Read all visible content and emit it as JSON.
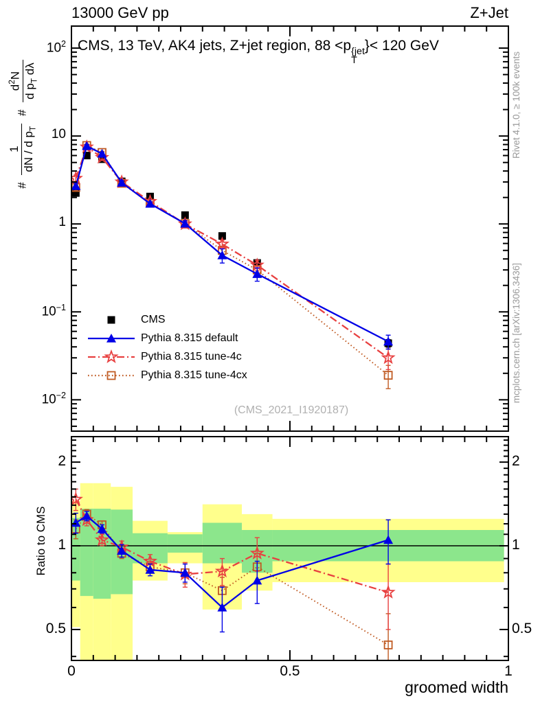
{
  "header": {
    "left": "13000 GeV pp",
    "right": "Z+Jet"
  },
  "title": {
    "pre": "CMS, 13 TeV, AK4 jets, Z+jet region, 88 <p",
    "sup": "{jet",
    "sub": "T",
    "post": "}< 120 GeV"
  },
  "ylabel": {
    "hash1": "#",
    "frac1_num": "1",
    "frac1_den_pre": "dN / d p",
    "frac1_den_sub": "T",
    "hash2": "#",
    "frac2_num_pre": "d",
    "frac2_num_sup": "2",
    "frac2_num_post": "N",
    "frac2_den_pre": "d p",
    "frac2_den_sub": "T",
    "frac2_den_post": " dλ"
  },
  "ratio_ylabel": "Ratio to CMS",
  "xlabel": "groomed width",
  "watermark": "(CMS_2021_I1920187)",
  "side_notes": {
    "top": "Rivet 4.1.0, ≥ 100k events",
    "bottom": "mcplots.cern.ch [arXiv:1306.3436]"
  },
  "legend": [
    {
      "label": "CMS",
      "marker": "filled-square"
    },
    {
      "label": "Pythia 8.315 default",
      "marker": "filled-triangle",
      "line": "solid"
    },
    {
      "label": "Pythia 8.315 tune-4c",
      "marker": "open-star",
      "line": "dash-dot"
    },
    {
      "label": "Pythia 8.315 tune-4cx",
      "marker": "open-square",
      "line": "dotted"
    }
  ],
  "colors": {
    "cms": "#000000",
    "pythia_default": "#0000e6",
    "pythia_4c": "#e84040",
    "pythia_4cx": "#c05a22",
    "band_yellow": "#ffff8c",
    "band_green": "#8ce68c",
    "frame": "#000000",
    "note_gray": "#9a9a9a",
    "watermark_gray": "#b0b0b0"
  },
  "chart_data": {
    "type": "line",
    "title": "CMS, 13 TeV, AK4 jets, Z+jet region, 88 < pT{jet} < 120 GeV",
    "xlabel": "groomed width",
    "ylabel": "# 1/(dN/dpT) # d2N/(dpT dlambda)",
    "legend_position": "middle-left",
    "x": [
      0.01,
      0.035,
      0.07,
      0.115,
      0.18,
      0.26,
      0.345,
      0.425,
      0.725
    ],
    "bin_edges": [
      0,
      0.02,
      0.05,
      0.09,
      0.14,
      0.22,
      0.3,
      0.39,
      0.46,
      0.99
    ],
    "y_main_range": [
      0.0044,
      178
    ],
    "y_ratio_range": [
      0.387,
      2.47
    ],
    "ratio_reference": 1,
    "series": [
      {
        "name": "CMS",
        "marker": "filled-square",
        "color": "#000000",
        "line": "none",
        "values": [
          2.25,
          6.0,
          5.45,
          3.05,
          2.05,
          1.26,
          0.73,
          0.36,
          0.044
        ],
        "rel_err": [
          0.03,
          0.02,
          0.02,
          0.02,
          0.02,
          0.03,
          0.04,
          0.05,
          0.1
        ]
      },
      {
        "name": "Pythia 8.315 default",
        "marker": "filled-triangle",
        "color": "#0000e6",
        "line": "solid",
        "values": [
          2.7,
          7.7,
          6.3,
          2.95,
          1.7,
          1.01,
          0.44,
          0.27,
          0.046
        ],
        "ratio": [
          1.21,
          1.28,
          1.15,
          0.96,
          0.82,
          0.8,
          0.6,
          0.75,
          1.05
        ],
        "ratio_err": [
          0.1,
          0.05,
          0.04,
          0.05,
          0.04,
          0.06,
          0.11,
          0.13,
          0.19
        ]
      },
      {
        "name": "Pythia 8.315 tune-4c",
        "marker": "open-star",
        "color": "#e84040",
        "line": "dash-dot",
        "values": [
          3.3,
          7.5,
          5.7,
          3.0,
          1.8,
          1.0,
          0.59,
          0.34,
          0.03
        ],
        "ratio": [
          1.47,
          1.24,
          1.05,
          0.99,
          0.88,
          0.79,
          0.81,
          0.94,
          0.68
        ],
        "ratio_err": [
          0.13,
          0.06,
          0.05,
          0.05,
          0.05,
          0.08,
          0.09,
          0.13,
          0.18
        ]
      },
      {
        "name": "Pythia 8.315 tune-4cx",
        "marker": "open-square",
        "color": "#c05a22",
        "line": "dotted",
        "values": [
          2.6,
          7.8,
          6.5,
          2.9,
          1.72,
          1.01,
          0.5,
          0.3,
          0.019
        ],
        "ratio": [
          1.15,
          1.3,
          1.19,
          0.94,
          0.84,
          0.8,
          0.69,
          0.84,
          0.44
        ],
        "ratio_err": [
          0.09,
          0.05,
          0.04,
          0.04,
          0.04,
          0.07,
          0.08,
          0.1,
          0.13
        ]
      }
    ],
    "ratio_bands": [
      {
        "x0": 0.0,
        "x1": 0.02,
        "yellow": [
          0.51,
          1.45
        ],
        "green": [
          0.75,
          1.26
        ]
      },
      {
        "x0": 0.02,
        "x1": 0.05,
        "yellow": [
          0.387,
          1.68
        ],
        "green": [
          0.66,
          1.36
        ]
      },
      {
        "x0": 0.05,
        "x1": 0.09,
        "yellow": [
          0.387,
          1.68
        ],
        "green": [
          0.645,
          1.36
        ]
      },
      {
        "x0": 0.09,
        "x1": 0.14,
        "yellow": [
          0.387,
          1.63
        ],
        "green": [
          0.67,
          1.35
        ]
      },
      {
        "x0": 0.14,
        "x1": 0.22,
        "yellow": [
          0.75,
          1.23
        ],
        "green": [
          0.865,
          1.11
        ]
      },
      {
        "x0": 0.22,
        "x1": 0.3,
        "yellow": [
          0.865,
          1.12
        ],
        "green": [
          0.945,
          1.1
        ]
      },
      {
        "x0": 0.3,
        "x1": 0.39,
        "yellow": [
          0.59,
          1.41
        ],
        "green": [
          0.865,
          1.21
        ]
      },
      {
        "x0": 0.39,
        "x1": 0.46,
        "yellow": [
          0.69,
          1.3
        ],
        "green": [
          0.8,
          1.14
        ]
      },
      {
        "x0": 0.46,
        "x1": 0.99,
        "yellow": [
          0.74,
          1.25
        ],
        "green": [
          0.88,
          1.14
        ]
      }
    ],
    "axes": {
      "x": {
        "min": 0,
        "max": 1,
        "majors": [
          0,
          0.5,
          1
        ],
        "labels": [
          "0",
          "0.5",
          "1"
        ],
        "minor_step": 0.05
      },
      "y_main": {
        "log": true,
        "majors": [
          100,
          10,
          1,
          0.1,
          0.01
        ]
      },
      "y_ratio": {
        "log": true,
        "majors": [
          0.5,
          1,
          2
        ],
        "labels": [
          "0.5",
          "1",
          "2"
        ],
        "minors": [
          0.4,
          0.6,
          0.7,
          0.8,
          0.9,
          1.1,
          1.2,
          1.3,
          1.4,
          1.5,
          1.6,
          1.7,
          1.8,
          1.9,
          2.1,
          2.2,
          2.3,
          2.4
        ]
      }
    }
  }
}
